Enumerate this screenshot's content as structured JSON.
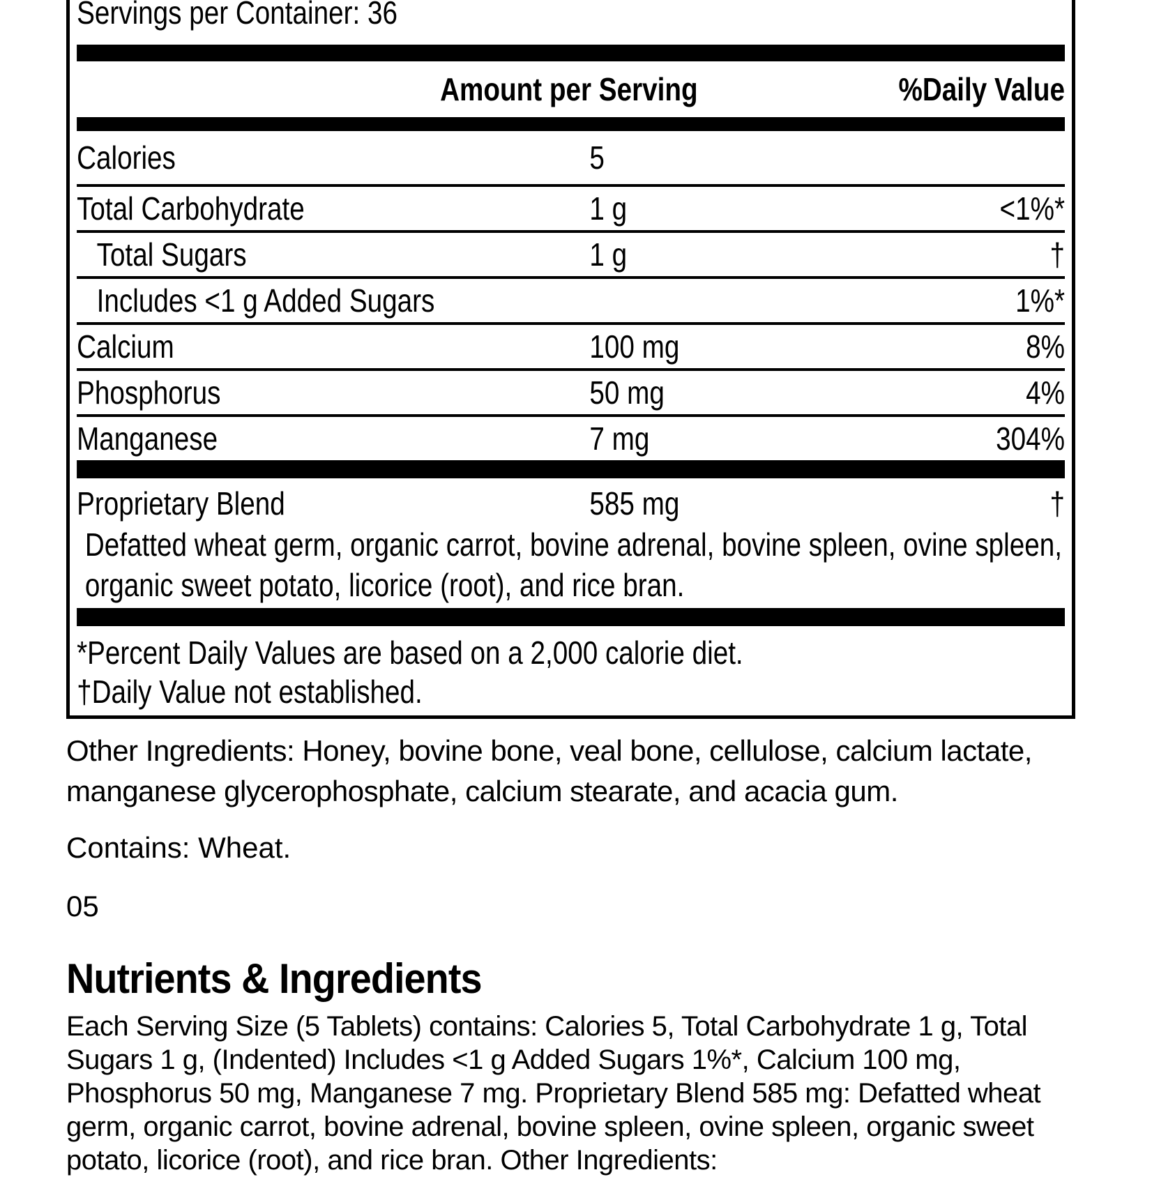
{
  "label": {
    "servings_per_container": "Servings per Container: 36",
    "header": {
      "amount": "Amount per Serving",
      "daily_value": "%Daily Value"
    },
    "rows": [
      {
        "name": "Calories",
        "amount": "5",
        "dv": ""
      },
      {
        "name": "Total Carbohydrate",
        "amount": "1 g",
        "dv": "<1%*"
      },
      {
        "name": "Total Sugars",
        "amount": "1 g",
        "dv": "†"
      },
      {
        "name": "Includes <1 g Added Sugars",
        "amount": "",
        "dv": "1%*"
      },
      {
        "name": "Calcium",
        "amount": "100 mg",
        "dv": "8%"
      },
      {
        "name": "Phosphorus",
        "amount": "50 mg",
        "dv": "4%"
      },
      {
        "name": "Manganese",
        "amount": "7 mg",
        "dv": "304%"
      }
    ],
    "proprietary_blend": {
      "name": "Proprietary Blend",
      "amount": "585 mg",
      "dv": "†",
      "description": "Defatted wheat germ, organic carrot, bovine adrenal, bovine spleen, ovine spleen, organic sweet potato, licorice (root), and rice bran."
    },
    "footnotes": [
      "*Percent Daily Values are based on a 2,000 calorie diet.",
      "†Daily Value not established."
    ]
  },
  "other_ingredients": "Other Ingredients: Honey, bovine bone, veal bone, cellulose, calcium lactate, manganese glycerophosphate, calcium stearate, and acacia gum.",
  "contains": "Contains: Wheat.",
  "page_number": "05",
  "section": {
    "heading": "Nutrients & Ingredients",
    "body": "Each Serving Size (5 Tablets) contains: Calories 5, Total Carbohydrate 1 g, Total Sugars 1 g, (Indented) Includes <1 g Added Sugars 1%*, Calcium 100 mg, Phosphorus 50 mg, Manganese 7 mg. Proprietary Blend 585 mg: Defatted wheat germ, organic carrot, bovine adrenal, bovine spleen, ovine spleen, organic sweet potato, licorice (root), and rice bran. Other Ingredients:"
  }
}
